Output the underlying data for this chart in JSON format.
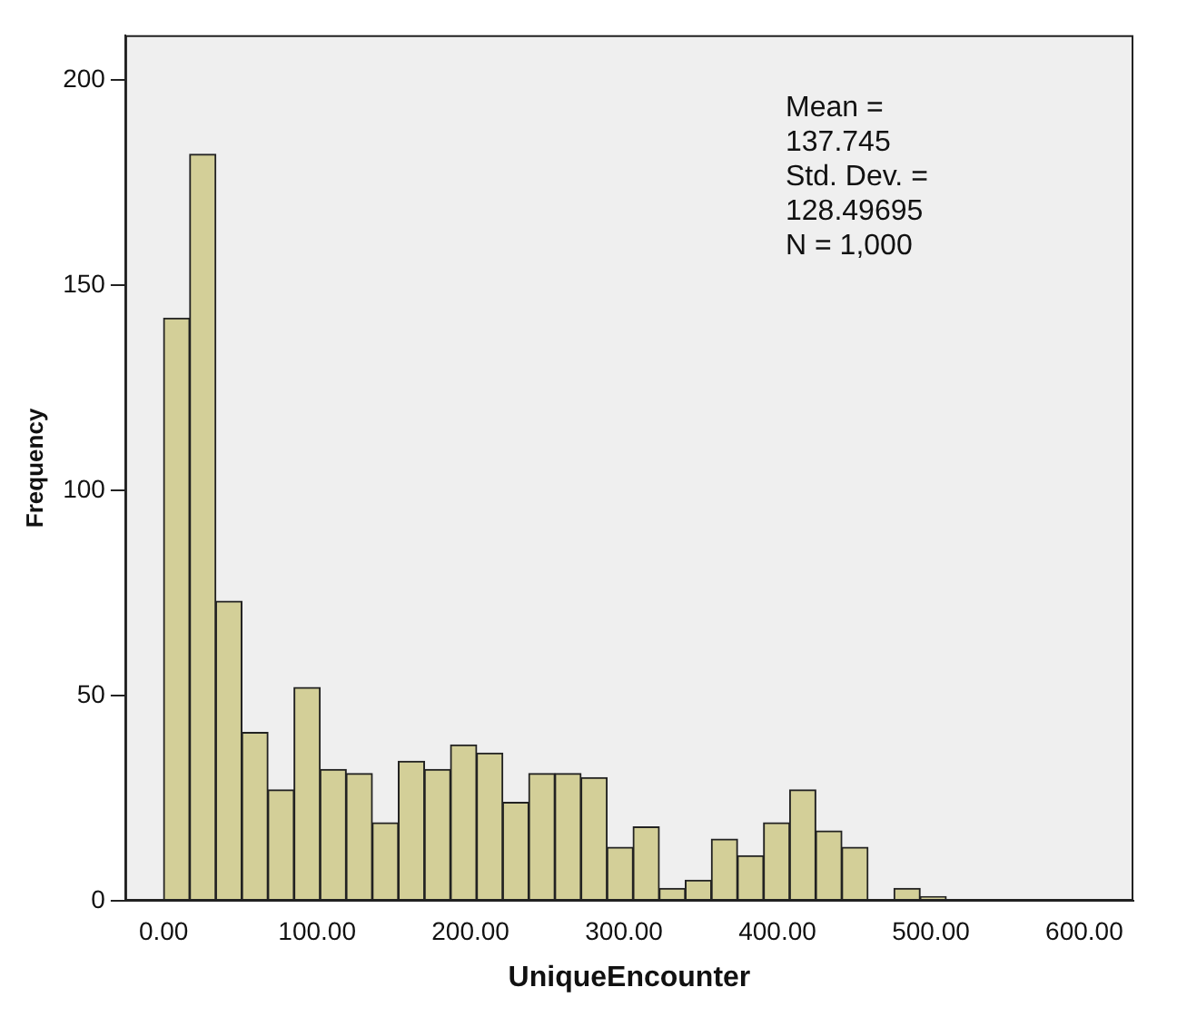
{
  "chart_data": {
    "type": "histogram",
    "xlabel": "UniqueEncounter",
    "ylabel": "Frequency",
    "bins": [
      0,
      17,
      34,
      51,
      68,
      85,
      102,
      119,
      136,
      153,
      170,
      187,
      204,
      221,
      238,
      255,
      272,
      289,
      306,
      323,
      340,
      357,
      374,
      391,
      408,
      425,
      442,
      459,
      476,
      493,
      510
    ],
    "values": [
      142,
      182,
      73,
      41,
      27,
      52,
      32,
      31,
      19,
      34,
      32,
      38,
      36,
      24,
      31,
      31,
      30,
      13,
      18,
      3,
      5,
      15,
      11,
      19,
      27,
      17,
      13,
      0,
      3,
      1
    ],
    "color": "#d3cf98",
    "xlim": [
      -25,
      632
    ],
    "ylim": [
      0,
      211
    ],
    "xticks": [
      {
        "value": 0,
        "label": "0.00"
      },
      {
        "value": 100,
        "label": "100.00"
      },
      {
        "value": 200,
        "label": "200.00"
      },
      {
        "value": 300,
        "label": "300.00"
      },
      {
        "value": 400,
        "label": "400.00"
      },
      {
        "value": 500,
        "label": "500.00"
      },
      {
        "value": 600,
        "label": "600.00"
      }
    ],
    "yticks": [
      0,
      50,
      100,
      150,
      200
    ],
    "grid": false,
    "legend": false,
    "annotations": [
      "Mean =\n137.745",
      "Std. Dev. =\n128.49695",
      "N = 1,000"
    ]
  }
}
